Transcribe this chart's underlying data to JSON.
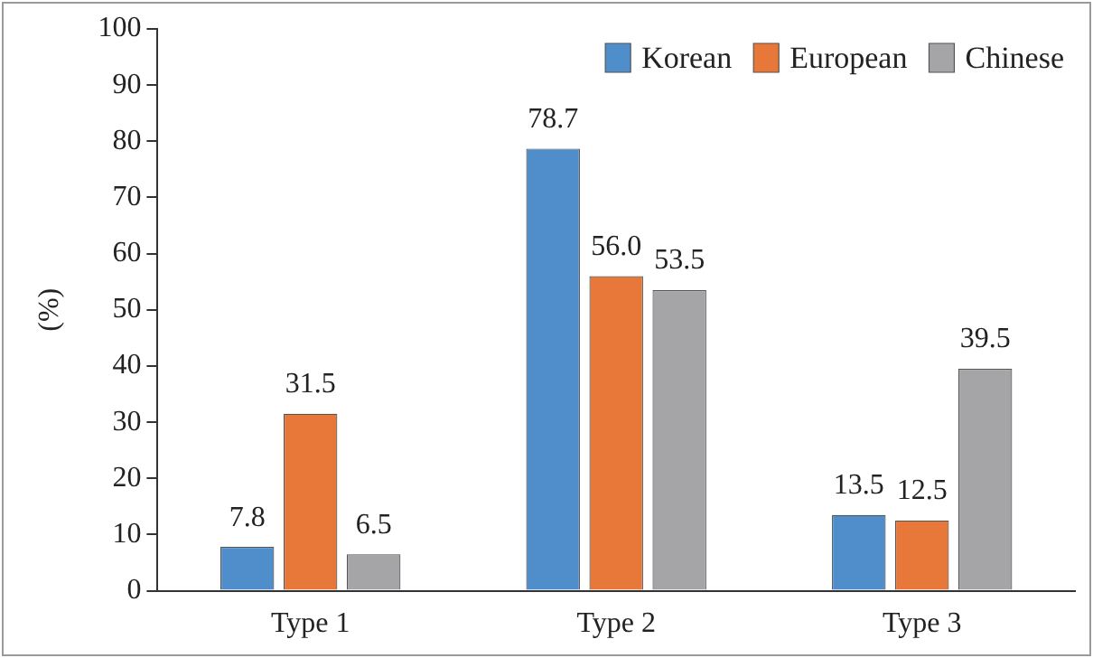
{
  "chart_data": {
    "type": "bar",
    "ylabel": "(%)",
    "categories": [
      "Type 1",
      "Type 2",
      "Type 3"
    ],
    "series": [
      {
        "name": "Korean",
        "color": "#4f8ecb",
        "values": [
          7.8,
          78.7,
          13.5
        ],
        "value_labels": [
          "7.8",
          "78.7",
          "13.5"
        ]
      },
      {
        "name": "European",
        "color": "#e8773a",
        "values": [
          31.5,
          56.0,
          12.5
        ],
        "value_labels": [
          "31.5",
          "56.0",
          "12.5"
        ]
      },
      {
        "name": "Chinese",
        "color": "#a5a5a7",
        "values": [
          6.5,
          53.5,
          39.5
        ],
        "value_labels": [
          "6.5",
          "53.5",
          "39.5"
        ]
      }
    ],
    "ylim": [
      0,
      100
    ],
    "yticks": [
      0,
      10,
      20,
      30,
      40,
      50,
      60,
      70,
      80,
      90,
      100
    ],
    "grid": false,
    "legend": "top right"
  }
}
